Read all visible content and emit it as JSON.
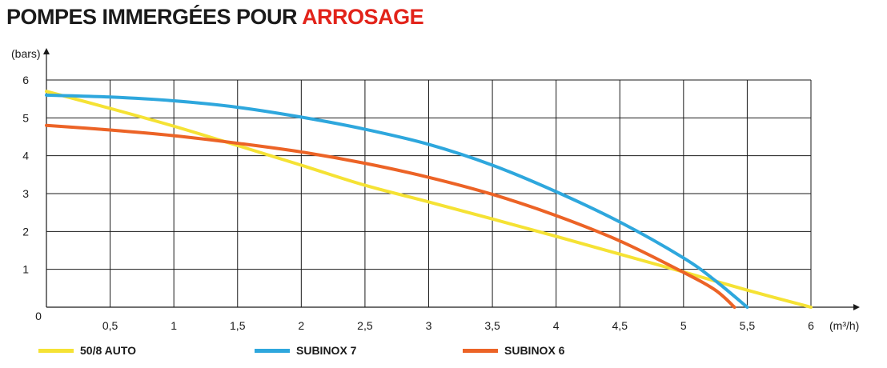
{
  "title": {
    "main": "POMPES IMMERGÉES POUR",
    "accent": "ARROSAGE"
  },
  "colors": {
    "accent": "#e2231a",
    "grid": "#1a1a1a"
  },
  "chart_data": {
    "type": "line",
    "title": "POMPES IMMERGÉES POUR ARROSAGE",
    "xlabel": "(m³/h)",
    "ylabel": "(bars)",
    "xlim": [
      0,
      6
    ],
    "ylim": [
      0,
      6
    ],
    "grid": true,
    "legend_position": "bottom",
    "x_ticks": [
      {
        "value": 0.5,
        "label": "0,5"
      },
      {
        "value": 1,
        "label": "1"
      },
      {
        "value": 1.5,
        "label": "1,5"
      },
      {
        "value": 2,
        "label": "2"
      },
      {
        "value": 2.5,
        "label": "2,5"
      },
      {
        "value": 3,
        "label": "3"
      },
      {
        "value": 3.5,
        "label": "3,5"
      },
      {
        "value": 4,
        "label": "4"
      },
      {
        "value": 4.5,
        "label": "4,5"
      },
      {
        "value": 5,
        "label": "5"
      },
      {
        "value": 5.5,
        "label": "5,5"
      },
      {
        "value": 6,
        "label": "6"
      }
    ],
    "y_ticks": [
      {
        "value": 1,
        "label": "1"
      },
      {
        "value": 2,
        "label": "2"
      },
      {
        "value": 3,
        "label": "3"
      },
      {
        "value": 4,
        "label": "4"
      },
      {
        "value": 5,
        "label": "5"
      },
      {
        "value": 6,
        "label": "6"
      }
    ],
    "origin_label": "0",
    "series": [
      {
        "name": "50/8 AUTO",
        "color": "#f5e234",
        "points": [
          [
            0,
            5.7
          ],
          [
            0.5,
            5.25
          ],
          [
            1,
            4.78
          ],
          [
            1.5,
            4.27
          ],
          [
            2,
            3.75
          ],
          [
            2.5,
            3.22
          ],
          [
            3,
            2.78
          ],
          [
            3.5,
            2.33
          ],
          [
            4,
            1.87
          ],
          [
            4.5,
            1.4
          ],
          [
            5,
            0.93
          ],
          [
            5.5,
            0.45
          ],
          [
            6,
            0
          ]
        ]
      },
      {
        "name": "SUBINOX 7",
        "color": "#2ea7dd",
        "points": [
          [
            0,
            5.6
          ],
          [
            0.5,
            5.55
          ],
          [
            1,
            5.45
          ],
          [
            1.5,
            5.28
          ],
          [
            2,
            5.02
          ],
          [
            2.5,
            4.7
          ],
          [
            3,
            4.3
          ],
          [
            3.5,
            3.75
          ],
          [
            4,
            3.05
          ],
          [
            4.5,
            2.25
          ],
          [
            5,
            1.3
          ],
          [
            5.25,
            0.7
          ],
          [
            5.5,
            0
          ]
        ]
      },
      {
        "name": "SUBINOX 6",
        "color": "#ec6326",
        "points": [
          [
            0,
            4.8
          ],
          [
            0.5,
            4.68
          ],
          [
            1,
            4.53
          ],
          [
            1.5,
            4.33
          ],
          [
            2,
            4.1
          ],
          [
            2.5,
            3.8
          ],
          [
            3,
            3.43
          ],
          [
            3.5,
            2.98
          ],
          [
            4,
            2.42
          ],
          [
            4.5,
            1.75
          ],
          [
            5,
            0.92
          ],
          [
            5.25,
            0.45
          ],
          [
            5.4,
            0
          ]
        ]
      }
    ]
  }
}
